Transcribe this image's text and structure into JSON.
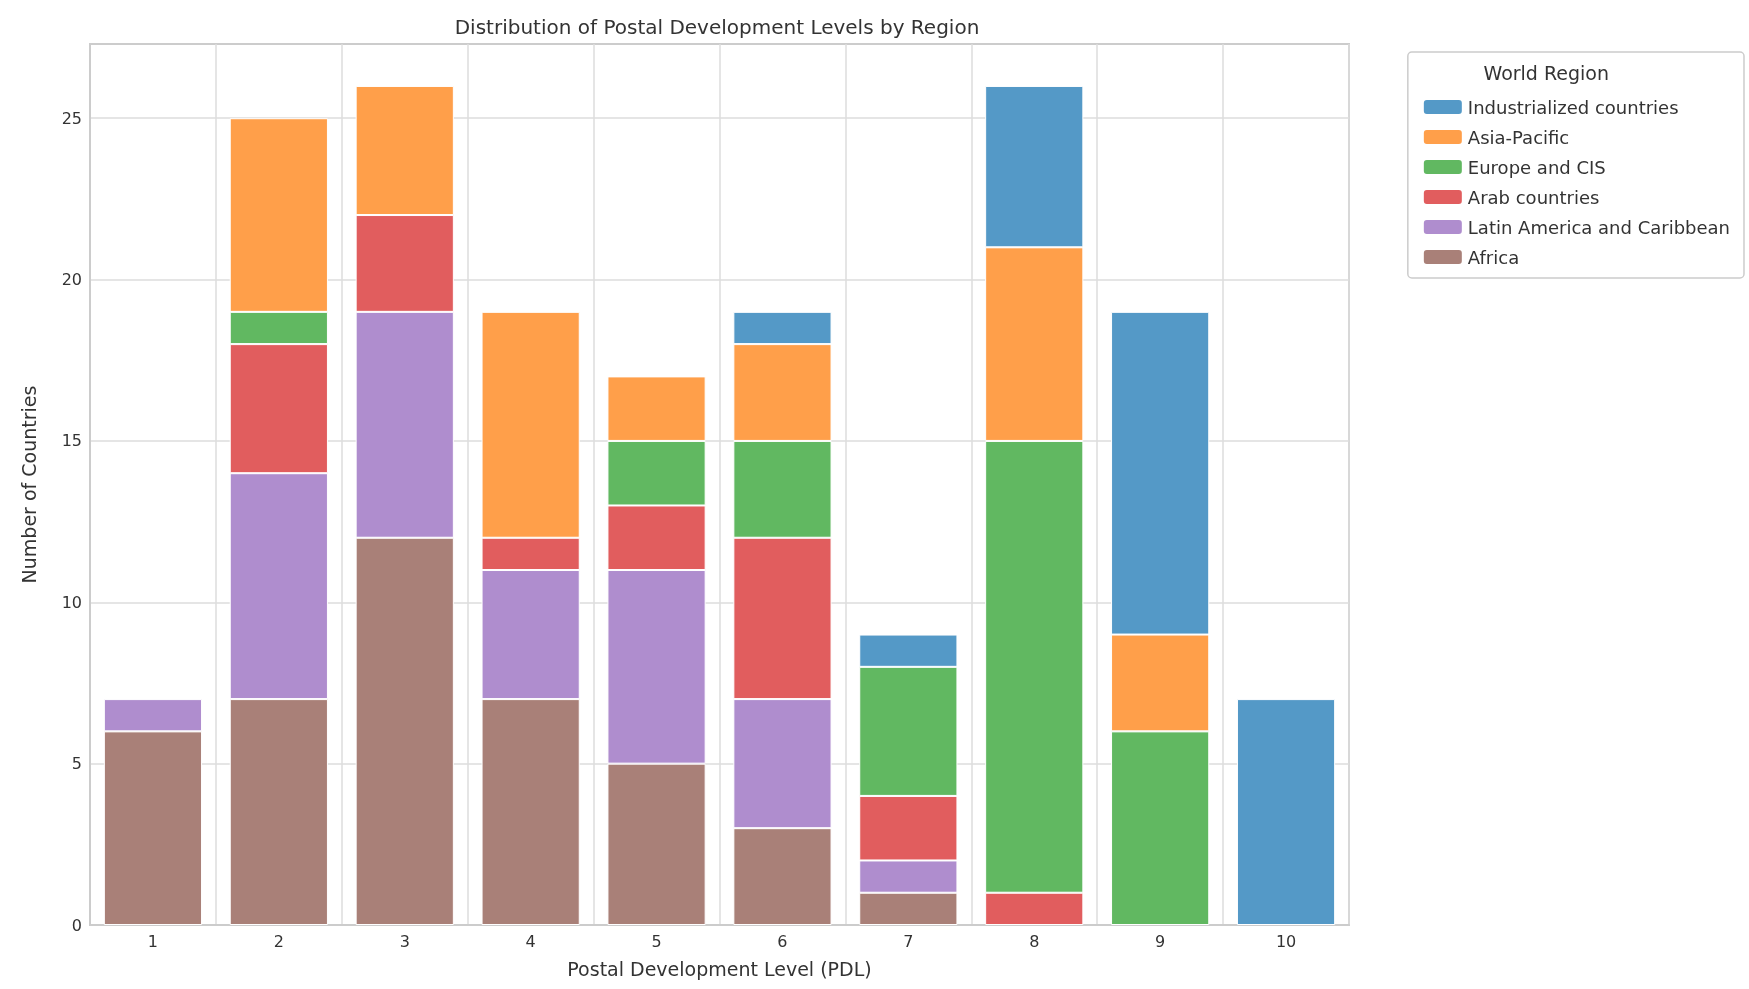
{
  "chart_data": {
    "type": "bar",
    "title": "Distribution of Postal Development Levels by Region",
    "xlabel": "Postal Development Level (PDL)",
    "ylabel": "Number of Countries",
    "legend_title": "World Region",
    "categories": [
      "1",
      "2",
      "3",
      "4",
      "5",
      "6",
      "7",
      "8",
      "9",
      "10"
    ],
    "stacked": true,
    "ylim": [
      0,
      27.3
    ],
    "yticks": [
      0,
      5,
      10,
      15,
      20,
      25
    ],
    "grid": true,
    "legend": "top right",
    "series": [
      {
        "name": "Africa",
        "color": "#a98078",
        "values": [
          6,
          7,
          12,
          7,
          5,
          3,
          1,
          0,
          0,
          0
        ]
      },
      {
        "name": "Latin America and Caribbean",
        "color": "#af8dce",
        "values": [
          1,
          7,
          7,
          4,
          6,
          4,
          1,
          0,
          0,
          0
        ]
      },
      {
        "name": "Arab countries",
        "color": "#e15d5e",
        "values": [
          0,
          4,
          3,
          1,
          2,
          5,
          2,
          1,
          0,
          0
        ]
      },
      {
        "name": "Europe and CIS",
        "color": "#61b861",
        "values": [
          0,
          1,
          0,
          0,
          2,
          3,
          4,
          14,
          6,
          0
        ]
      },
      {
        "name": "Asia-Pacific",
        "color": "#ff9f4a",
        "values": [
          0,
          6,
          4,
          7,
          2,
          3,
          0,
          6,
          3,
          0
        ]
      },
      {
        "name": "Industrialized countries",
        "color": "#5499c7",
        "values": [
          0,
          0,
          0,
          0,
          0,
          1,
          1,
          5,
          10,
          7
        ]
      }
    ]
  }
}
